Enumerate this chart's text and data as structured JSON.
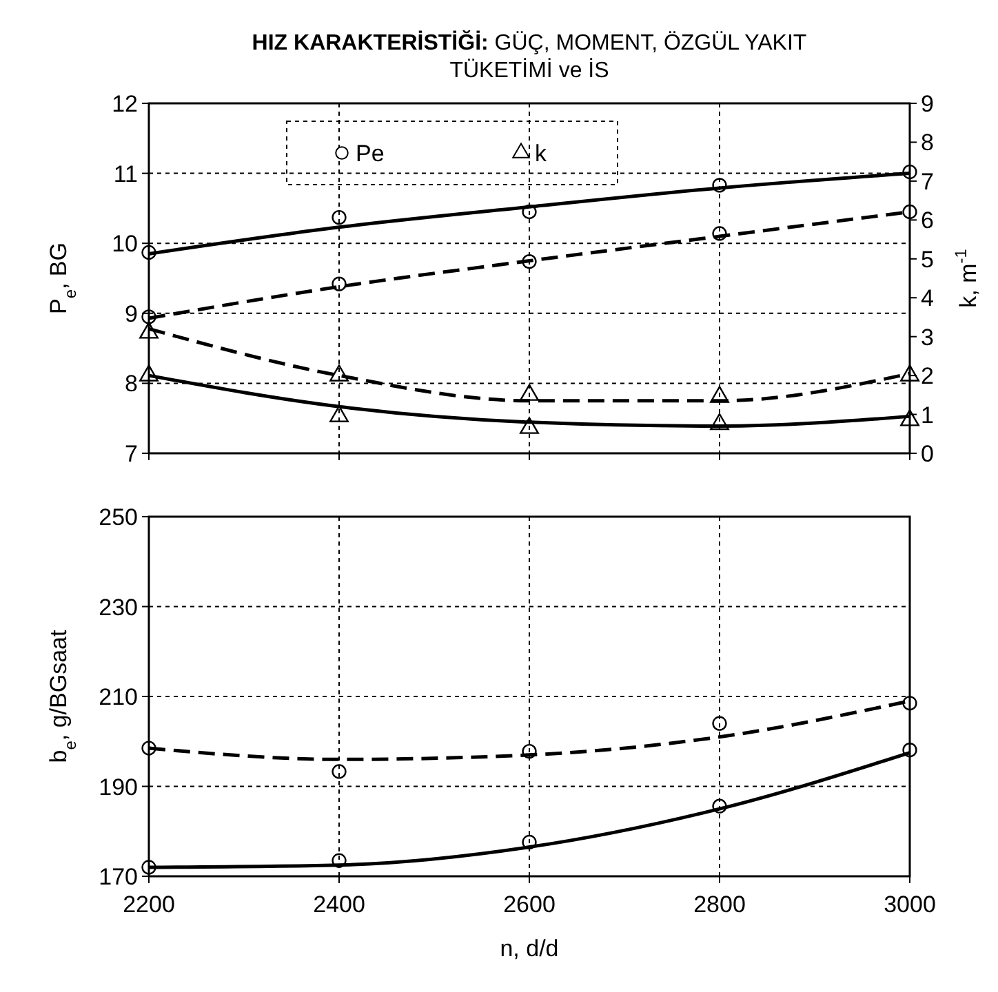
{
  "chart_data": [
    {
      "type": "line",
      "title": "HIZ KARAKTERİSTİĞİ: GÜÇ, MOMENT, ÖZGÜL YAKIT TÜKETİMİ ve İS",
      "ylabel": "P$_{e}$, BG",
      "y2label": "k, m$^{-1}$",
      "xlim": [
        2200,
        3000
      ],
      "xticks": [
        2200,
        2400,
        2600,
        2800,
        3000
      ],
      "ylim": [
        7,
        12
      ],
      "yticks": [
        7,
        8,
        9,
        10,
        11,
        12
      ],
      "y2lim": [
        0,
        9
      ],
      "y2ticks": [
        0,
        1,
        2,
        3,
        4,
        5,
        6,
        7,
        8,
        9
      ],
      "tick_labels": "y",
      "grid": true,
      "legend": "top left",
      "series": [
        {
          "type": "scatter",
          "name": "Pe",
          "marker": "circle",
          "color": "#000000",
          "x": [
            2200,
            2400,
            2600,
            2800,
            3000,
            2200,
            2400,
            2600,
            2800,
            3000
          ],
          "values": [
            9.87,
            10.37,
            10.45,
            10.83,
            11.02,
            8.95,
            9.42,
            9.74,
            10.14,
            10.45
          ]
        },
        {
          "type": "scatter",
          "name": "k",
          "marker": "triangle",
          "color": "#000000",
          "axis": "y2",
          "x": [
            2200,
            2400,
            2600,
            2800,
            3000,
            2200,
            2400,
            2600,
            2800,
            3000
          ],
          "values": [
            2.0,
            0.95,
            0.65,
            0.75,
            0.85,
            3.1,
            2.0,
            1.5,
            1.45,
            2.0
          ]
        },
        {
          "type": "line",
          "marker": "none",
          "line_style": "solid",
          "color": "#000000",
          "x": [
            2200,
            2400,
            2600,
            2800,
            3000
          ],
          "values": [
            9.85,
            10.23,
            10.52,
            10.79,
            11.0
          ]
        },
        {
          "type": "line",
          "marker": "none",
          "line_style": "dashed",
          "color": "#000000",
          "x": [
            2200,
            2400,
            2600,
            2800,
            3000
          ],
          "values": [
            8.93,
            9.38,
            9.75,
            10.1,
            10.45
          ]
        },
        {
          "type": "line",
          "marker": "none",
          "line_style": "solid",
          "color": "#000000",
          "axis": "y2",
          "x": [
            2200,
            2400,
            2600,
            2800,
            3000
          ],
          "values": [
            2.0,
            1.2,
            0.8,
            0.7,
            0.95
          ]
        },
        {
          "type": "line",
          "marker": "none",
          "line_style": "dashed",
          "color": "#000000",
          "axis": "y2",
          "x": [
            2200,
            2400,
            2600,
            2800,
            3000
          ],
          "values": [
            3.2,
            2.0,
            1.35,
            1.35,
            2.05
          ]
        }
      ]
    },
    {
      "type": "line",
      "xlabel": "n, d/d",
      "ylabel": "b$_{e}$, g/BGsaat",
      "xlim": [
        2200,
        3000
      ],
      "xticks": [
        2200,
        2400,
        2600,
        2800,
        3000
      ],
      "ylim": [
        170,
        250
      ],
      "yticks": [
        170,
        190,
        210,
        230,
        250
      ],
      "grid": true,
      "series": [
        {
          "type": "scatter",
          "marker": "circle",
          "color": "#000000",
          "x": [
            2200,
            2400,
            2600,
            2800,
            3000,
            2200,
            2400,
            2600,
            2800,
            3000
          ],
          "values": [
            172,
            173.5,
            177.6,
            185.6,
            198.1,
            198.5,
            193.3,
            197.8,
            204,
            208.5
          ]
        },
        {
          "type": "line",
          "marker": "none",
          "line_style": "solid",
          "color": "#000000",
          "x": [
            2200,
            2400,
            2600,
            2800,
            3000
          ],
          "values": [
            172,
            172.5,
            176.5,
            185,
            197.5
          ]
        },
        {
          "type": "line",
          "marker": "none",
          "line_style": "dashed",
          "color": "#000000",
          "x": [
            2200,
            2400,
            2600,
            2800,
            3000
          ],
          "values": [
            198.5,
            196,
            197,
            201,
            209
          ]
        }
      ]
    }
  ]
}
